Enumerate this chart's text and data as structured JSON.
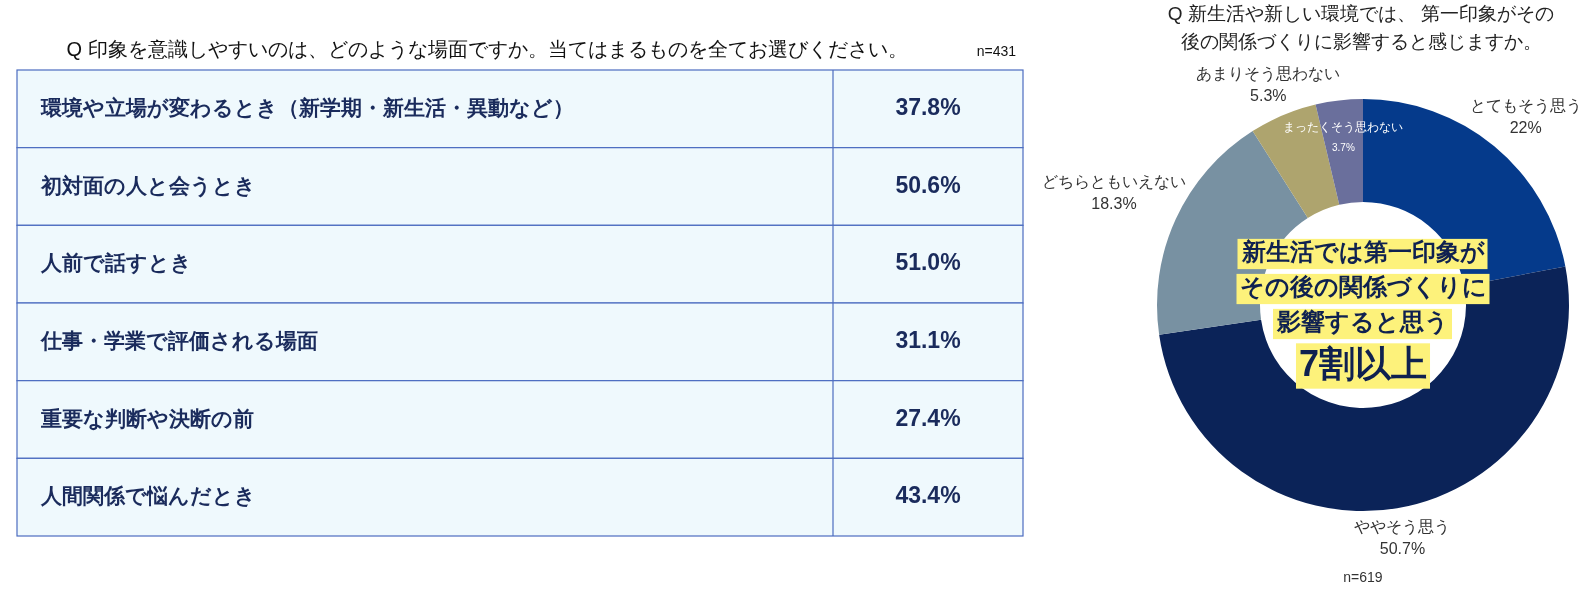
{
  "chart_data": [
    {
      "type": "other",
      "title": "Q 印象を意識しやすいのは、どのような場面ですか。当てはまるものを全てお選びください。",
      "annotations": [
        "n=431"
      ],
      "categories": [
        "環境や立場が変わるとき（新学期・新生活・異動など）",
        "初対面の人と会うとき",
        "人前で話すとき",
        "仕事・学業で評価される場面",
        "重要な判断や決断の前",
        "人間関係で悩んだとき"
      ],
      "values": [
        37.8,
        50.6,
        51.0,
        31.1,
        27.4,
        43.4
      ],
      "value_labels": [
        "37.8%",
        "50.6%",
        "51.0%",
        "31.1%",
        "27.4%",
        "43.4%"
      ]
    },
    {
      "type": "donut",
      "title": "Q 新生活や新しい環境では、 第一印象がその後の関係づくりに影響すると感じますか。",
      "categories": [
        "とてもそう思う",
        "ややそう思う",
        "どちらともいえない",
        "あまりそう思わない",
        "まったくそう思わない"
      ],
      "values": [
        22,
        50.7,
        18.3,
        5.3,
        3.7
      ],
      "value_labels": [
        "22%",
        "50.7%",
        "18.3%",
        "5.3%",
        "3.7%"
      ],
      "colors": [
        "#053a8b",
        "#0b2358",
        "#7891a2",
        "#aea46e",
        "#6a6f9c"
      ],
      "annotations": [
        "n=619",
        "新生活では第一印象が",
        "その後の関係づくりに",
        "影響すると思う",
        "7割以上"
      ]
    }
  ]
}
